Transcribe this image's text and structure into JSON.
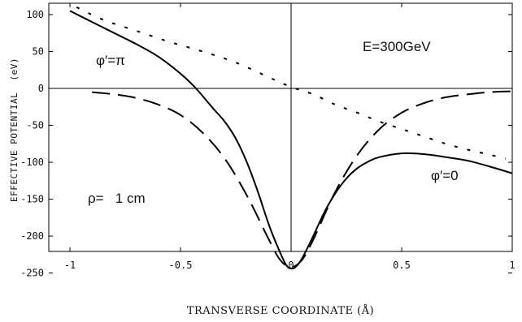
{
  "chart_data": {
    "type": "line",
    "title": "",
    "xlabel": "TRANSVERSE COORDINATE (Å)",
    "ylabel": "EFFECTIVE POTENTIAL  (eV)",
    "xlim": [
      -1,
      1
    ],
    "ylim": [
      -255,
      120
    ],
    "xticks": [
      -1,
      -0.5,
      0,
      0.5,
      1
    ],
    "xtick_labels": [
      "-1",
      "-0.5",
      "0",
      "0.5",
      "1"
    ],
    "yticks": [
      100,
      50,
      0,
      -50,
      -100,
      -150,
      -200,
      -250
    ],
    "ytick_labels": [
      "100",
      "50",
      "0",
      "-50",
      "-100",
      "-150",
      "-200",
      "-250"
    ],
    "grid": false,
    "annotations": [
      "E=300GeV",
      "φ′=π",
      "φ′=0",
      "ρ=   1 cm"
    ],
    "series": [
      {
        "style": "solid",
        "color": "#000000",
        "x": [
          -1.0,
          -0.9,
          -0.8,
          -0.7,
          -0.6,
          -0.5,
          -0.43,
          -0.35,
          -0.3,
          -0.25,
          -0.2,
          -0.15,
          -0.1,
          -0.05,
          -0.02,
          0.0,
          0.02,
          0.05,
          0.1,
          0.15,
          0.2,
          0.25,
          0.3,
          0.35,
          0.4,
          0.5,
          0.6,
          0.7,
          0.8,
          0.9,
          1.0
        ],
        "y": [
          105,
          90,
          75,
          60,
          43,
          20,
          0,
          -28,
          -45,
          -68,
          -100,
          -140,
          -185,
          -222,
          -240,
          -244,
          -242,
          -230,
          -200,
          -168,
          -142,
          -122,
          -108,
          -99,
          -93,
          -88,
          -89,
          -93,
          -98,
          -106,
          -115
        ]
      },
      {
        "style": "dashed",
        "color": "#000000",
        "x": [
          -0.9,
          -0.8,
          -0.7,
          -0.6,
          -0.5,
          -0.4,
          -0.3,
          -0.2,
          -0.1,
          -0.05,
          0.0,
          0.05,
          0.1,
          0.2,
          0.3,
          0.4,
          0.5,
          0.6,
          0.7,
          0.8,
          0.9,
          1.0
        ],
        "y": [
          -5,
          -8,
          -13,
          -22,
          -36,
          -60,
          -95,
          -145,
          -205,
          -232,
          -242,
          -232,
          -205,
          -140,
          -90,
          -55,
          -33,
          -20,
          -12,
          -8,
          -5,
          -4
        ]
      },
      {
        "style": "dotted",
        "color": "#000000",
        "x": [
          -0.97,
          -0.85,
          -0.7,
          -0.55,
          -0.4,
          -0.25,
          -0.1,
          0.0,
          0.1,
          0.2,
          0.3,
          0.4,
          0.5,
          0.6,
          0.7,
          0.8,
          0.9,
          0.97
        ],
        "y": [
          110,
          93,
          78,
          63,
          50,
          35,
          15,
          2,
          -8,
          -22,
          -33,
          -45,
          -55,
          -65,
          -75,
          -83,
          -90,
          -95
        ]
      }
    ]
  }
}
